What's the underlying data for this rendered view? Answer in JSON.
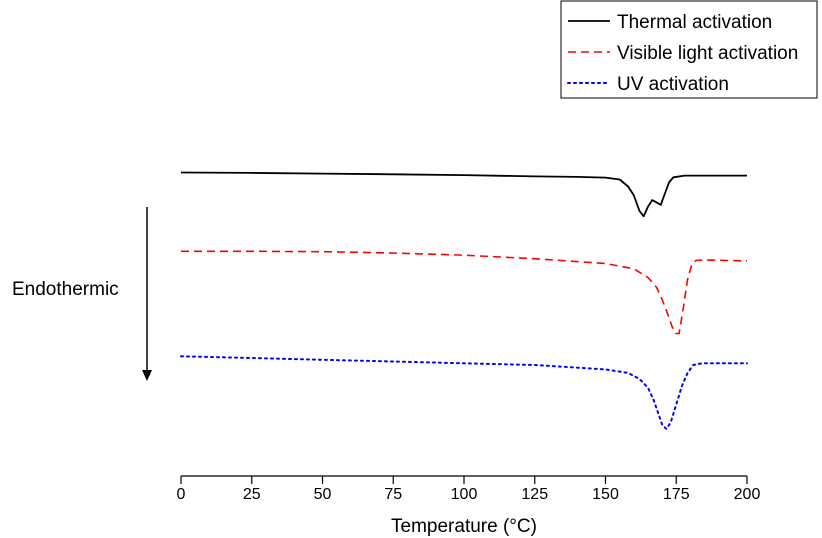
{
  "chart_data": {
    "type": "line",
    "title": "",
    "xlabel": "Temperature (°C)",
    "ylabel": "",
    "xlim": [
      0,
      200
    ],
    "x_ticks": [
      0,
      25,
      50,
      75,
      100,
      125,
      150,
      175,
      200
    ],
    "y_ticks_visible": false,
    "grid": false,
    "legend_position": "top-right",
    "series": [
      {
        "name": "Thermal activation",
        "color": "#000000",
        "dash": "solid",
        "points": [
          [
            0,
            6.0
          ],
          [
            25,
            6.05
          ],
          [
            50,
            6.12
          ],
          [
            75,
            6.2
          ],
          [
            100,
            6.3
          ],
          [
            125,
            6.45
          ],
          [
            140,
            6.5
          ],
          [
            150,
            6.58
          ],
          [
            155,
            6.8
          ],
          [
            158,
            7.6
          ],
          [
            160,
            8.6
          ],
          [
            162,
            10.4
          ],
          [
            163.5,
            11.0
          ],
          [
            165,
            9.9
          ],
          [
            166.5,
            9.15
          ],
          [
            168,
            9.4
          ],
          [
            169.5,
            9.7
          ],
          [
            171,
            8.4
          ],
          [
            172.5,
            7.1
          ],
          [
            174,
            6.55
          ],
          [
            178,
            6.35
          ],
          [
            200,
            6.35
          ]
        ]
      },
      {
        "name": "Visible light activation",
        "color": "#ff0000",
        "dash": "dashed",
        "points": [
          [
            0,
            15.0
          ],
          [
            25,
            15.0
          ],
          [
            50,
            15.05
          ],
          [
            75,
            15.2
          ],
          [
            100,
            15.45
          ],
          [
            125,
            15.85
          ],
          [
            150,
            16.4
          ],
          [
            160,
            17.0
          ],
          [
            165,
            18.0
          ],
          [
            168,
            19.1
          ],
          [
            170,
            20.5
          ],
          [
            172,
            22.2
          ],
          [
            173.5,
            23.6
          ],
          [
            174.8,
            24.4
          ],
          [
            176,
            24.4
          ],
          [
            177.5,
            21.5
          ],
          [
            179,
            18.2
          ],
          [
            180.5,
            16.5
          ],
          [
            182,
            16.05
          ],
          [
            185,
            16.0
          ],
          [
            200,
            16.1
          ]
        ]
      },
      {
        "name": "UV activation",
        "color": "#0000ff",
        "dash": "dotted",
        "points": [
          [
            0,
            27.0
          ],
          [
            25,
            27.2
          ],
          [
            50,
            27.4
          ],
          [
            75,
            27.6
          ],
          [
            100,
            27.8
          ],
          [
            125,
            28.0
          ],
          [
            150,
            28.5
          ],
          [
            158,
            28.9
          ],
          [
            162,
            29.6
          ],
          [
            165,
            30.6
          ],
          [
            167,
            32.0
          ],
          [
            168.5,
            33.4
          ],
          [
            170,
            34.8
          ],
          [
            171.5,
            35.3
          ],
          [
            173,
            34.6
          ],
          [
            175,
            32.5
          ],
          [
            177,
            30.4
          ],
          [
            179,
            28.9
          ],
          [
            181,
            28.0
          ],
          [
            184,
            27.8
          ],
          [
            200,
            27.8
          ]
        ]
      }
    ],
    "annotations": [
      {
        "text": "Endothermic",
        "arrow": "down"
      }
    ]
  }
}
